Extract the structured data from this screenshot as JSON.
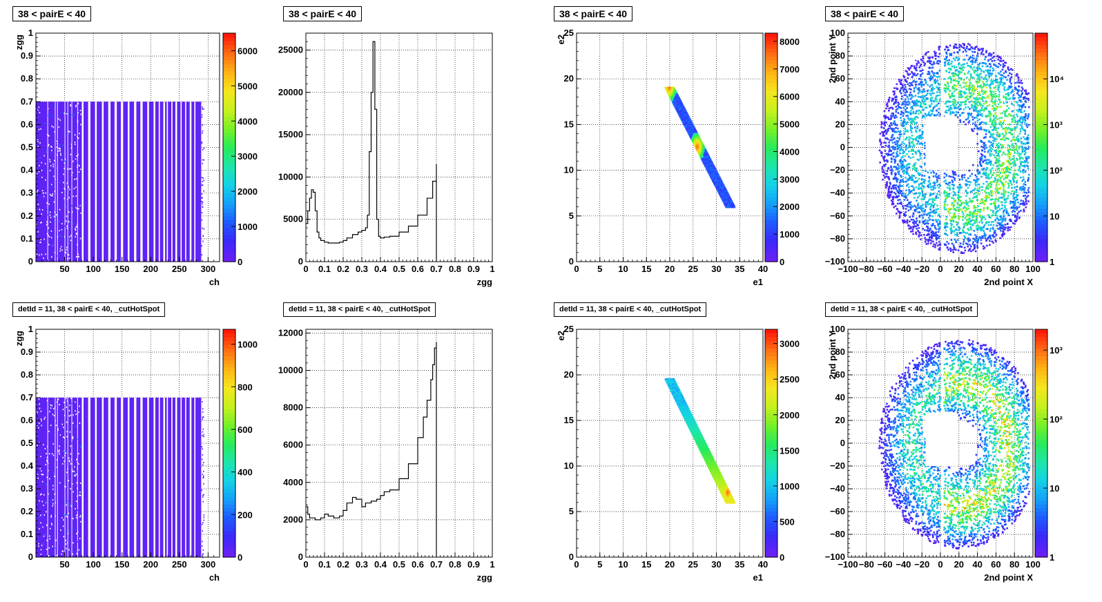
{
  "colors": {
    "palette_low": "#6b21f5",
    "palette_high": "#ff1a0a",
    "line": "#000000",
    "grid": "#000000"
  },
  "chart_data": [
    {
      "type": "heatmap",
      "title": "38 < pairE < 40",
      "xlabel": "ch",
      "ylabel": "zgg",
      "xlim": [
        0,
        320
      ],
      "ylim": [
        0,
        1
      ],
      "zlim": [
        0,
        6500
      ],
      "grid": true,
      "xticks": [
        "50",
        "100",
        "150",
        "200",
        "250",
        "300"
      ],
      "yticks": [
        "0",
        "0.1",
        "0.2",
        "0.3",
        "0.4",
        "0.5",
        "0.6",
        "0.7",
        "0.8",
        "0.9",
        "1"
      ],
      "zticks": [
        "0",
        "1000",
        "2000",
        "3000",
        "4000",
        "5000",
        "6000"
      ],
      "data_x_range": [
        0,
        288
      ],
      "data_y_range": [
        0,
        0.7
      ]
    },
    {
      "type": "line",
      "title": "38 < pairE < 40",
      "xlabel": "zgg",
      "ylabel": "",
      "xlim": [
        0,
        1
      ],
      "ylim": [
        0,
        27000
      ],
      "grid": true,
      "xticks": [
        "0",
        "0.1",
        "0.2",
        "0.3",
        "0.4",
        "0.5",
        "0.6",
        "0.7",
        "0.8",
        "0.9",
        "1"
      ],
      "yticks": [
        "0",
        "5000",
        "10000",
        "15000",
        "20000",
        "25000"
      ],
      "x": [
        0.0,
        0.01,
        0.02,
        0.03,
        0.04,
        0.05,
        0.06,
        0.07,
        0.08,
        0.1,
        0.12,
        0.15,
        0.18,
        0.2,
        0.22,
        0.25,
        0.28,
        0.3,
        0.32,
        0.33,
        0.34,
        0.35,
        0.36,
        0.37,
        0.38,
        0.39,
        0.4,
        0.42,
        0.45,
        0.5,
        0.55,
        0.6,
        0.65,
        0.68,
        0.7
      ],
      "y": [
        4500,
        6000,
        7500,
        8500,
        8200,
        6000,
        3500,
        2800,
        2500,
        2300,
        2200,
        2200,
        2300,
        2500,
        2800,
        3200,
        3500,
        3700,
        4000,
        5500,
        13000,
        20000,
        26000,
        18000,
        5000,
        3000,
        2800,
        2900,
        3000,
        3500,
        4200,
        5500,
        7500,
        9500,
        11500
      ]
    },
    {
      "type": "heatmap",
      "title": "38 < pairE < 40",
      "xlabel": "e1",
      "ylabel": "e2",
      "xlim": [
        0,
        40
      ],
      "ylim": [
        0,
        25
      ],
      "zlim": [
        0,
        8300
      ],
      "grid": true,
      "xticks": [
        "0",
        "5",
        "10",
        "15",
        "20",
        "25",
        "30",
        "35",
        "40"
      ],
      "yticks": [
        "0",
        "5",
        "10",
        "15",
        "20",
        "25"
      ],
      "zticks": [
        "0",
        "1000",
        "2000",
        "3000",
        "4000",
        "5000",
        "6000",
        "7000",
        "8000"
      ],
      "band": {
        "from": [
          20,
          19
        ],
        "to": [
          33,
          6
        ]
      },
      "hotspots": [
        [
          26,
          12.5
        ],
        [
          20,
          19
        ]
      ]
    },
    {
      "type": "heatmap",
      "title": "38 < pairE < 40",
      "xlabel": "2nd point X",
      "ylabel": "2nd point Y",
      "xlim": [
        -100,
        100
      ],
      "ylim": [
        -100,
        100
      ],
      "zscale": "log",
      "zlim": [
        1,
        100000
      ],
      "grid": true,
      "xticks": [
        "−100",
        "−80",
        "−60",
        "−40",
        "−20",
        "0",
        "20",
        "40",
        "60",
        "80",
        "100"
      ],
      "yticks": [
        "−100",
        "−80",
        "−60",
        "−40",
        "−20",
        "0",
        "20",
        "40",
        "60",
        "80",
        "100"
      ],
      "zticks": [
        "1",
        "10",
        "10²",
        "10³",
        "10⁴"
      ]
    },
    {
      "type": "heatmap",
      "title": "detId = 11, 38 < pairE < 40, _cutHotSpot",
      "xlabel": "ch",
      "ylabel": "zgg",
      "xlim": [
        0,
        320
      ],
      "ylim": [
        0,
        1
      ],
      "zlim": [
        0,
        1070
      ],
      "grid": true,
      "xticks": [
        "50",
        "100",
        "150",
        "200",
        "250",
        "300"
      ],
      "yticks": [
        "0",
        "0.1",
        "0.2",
        "0.3",
        "0.4",
        "0.5",
        "0.6",
        "0.7",
        "0.8",
        "0.9",
        "1"
      ],
      "zticks": [
        "0",
        "200",
        "400",
        "600",
        "800",
        "1000"
      ],
      "data_x_range": [
        0,
        288
      ],
      "data_y_range": [
        0,
        0.7
      ]
    },
    {
      "type": "line",
      "title": "detId = 11, 38 < pairE < 40, _cutHotSpot",
      "xlabel": "zgg",
      "ylabel": "",
      "xlim": [
        0,
        1
      ],
      "ylim": [
        0,
        12200
      ],
      "grid": true,
      "xticks": [
        "0",
        "0.1",
        "0.2",
        "0.3",
        "0.4",
        "0.5",
        "0.6",
        "0.7",
        "0.8",
        "0.9",
        "1"
      ],
      "yticks": [
        "0",
        "2000",
        "4000",
        "6000",
        "8000",
        "10000",
        "12000"
      ],
      "x": [
        0.0,
        0.01,
        0.02,
        0.05,
        0.08,
        0.1,
        0.12,
        0.15,
        0.18,
        0.2,
        0.22,
        0.25,
        0.27,
        0.3,
        0.32,
        0.35,
        0.38,
        0.4,
        0.42,
        0.45,
        0.5,
        0.55,
        0.6,
        0.63,
        0.65,
        0.67,
        0.68,
        0.69,
        0.7
      ],
      "y": [
        2700,
        2300,
        2100,
        2000,
        2100,
        2300,
        2200,
        2100,
        2200,
        2500,
        2900,
        3200,
        3100,
        2700,
        2900,
        3000,
        3100,
        3300,
        3500,
        3600,
        4200,
        5000,
        6400,
        7500,
        8400,
        9500,
        10300,
        11200,
        11500
      ]
    },
    {
      "type": "heatmap",
      "title": "detId = 11, 38 < pairE < 40, _cutHotSpot",
      "xlabel": "e1",
      "ylabel": "e2",
      "xlim": [
        0,
        40
      ],
      "ylim": [
        0,
        25
      ],
      "zlim": [
        0,
        3200
      ],
      "grid": true,
      "xticks": [
        "0",
        "5",
        "10",
        "15",
        "20",
        "25",
        "30",
        "35",
        "40"
      ],
      "yticks": [
        "0",
        "5",
        "10",
        "15",
        "20",
        "25"
      ],
      "zticks": [
        "0",
        "500",
        "1000",
        "1500",
        "2000",
        "2500",
        "3000"
      ],
      "band": {
        "from": [
          20,
          19.5
        ],
        "to": [
          33,
          6
        ]
      },
      "hotspots": [
        [
          32.5,
          7
        ]
      ]
    },
    {
      "type": "heatmap",
      "title": "detId = 11, 38 < pairE < 40, _cutHotSpot",
      "xlabel": "2nd point X",
      "ylabel": "2nd point Y",
      "xlim": [
        -100,
        100
      ],
      "ylim": [
        -100,
        100
      ],
      "zscale": "log",
      "zlim": [
        1,
        2000
      ],
      "grid": true,
      "xticks": [
        "−100",
        "−80",
        "−60",
        "−40",
        "−20",
        "0",
        "20",
        "40",
        "60",
        "80",
        "100"
      ],
      "yticks": [
        "−100",
        "−80",
        "−60",
        "−40",
        "−20",
        "0",
        "20",
        "40",
        "60",
        "80",
        "100"
      ],
      "zticks": [
        "1",
        "10",
        "10²",
        "10³"
      ]
    }
  ]
}
